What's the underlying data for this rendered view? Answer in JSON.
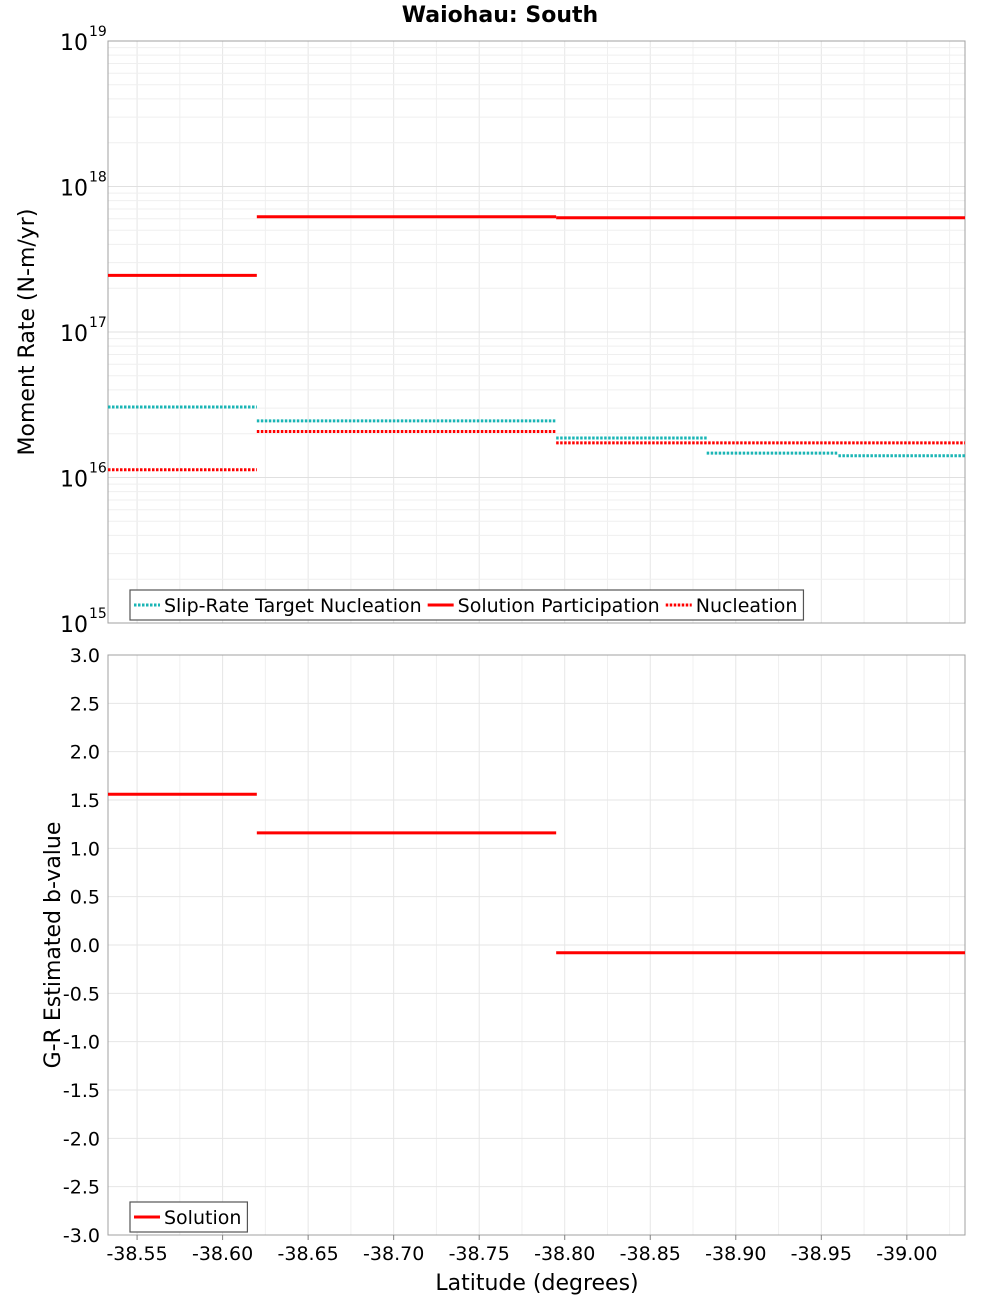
{
  "chart_data": {
    "title": "Waiohau: South",
    "type": "line",
    "x": {
      "label": "Latitude (degrees)",
      "range": [
        -38.533,
        -39.034
      ],
      "ticks": [
        "-38.55",
        "-38.60",
        "-38.65",
        "-38.70",
        "-38.75",
        "-38.80",
        "-38.85",
        "-38.90",
        "-38.95",
        "-39.00"
      ],
      "tick_values": [
        -38.55,
        -38.6,
        -38.65,
        -38.7,
        -38.75,
        -38.8,
        -38.85,
        -38.9,
        -38.95,
        -39.0
      ],
      "reversed": true,
      "grid": true
    },
    "panels": [
      {
        "ylabel": "Moment Rate (N-m/yr)",
        "yscale": "log",
        "ylim": [
          1000000000000000.0,
          1e+19
        ],
        "ytick_bases": [
          "10",
          "10",
          "10",
          "10",
          "10"
        ],
        "ytick_exponents": [
          "15",
          "16",
          "17",
          "18",
          "19"
        ],
        "legend": {
          "position": "bottom-left"
        },
        "series": [
          {
            "name": "Slip-Rate Target Nucleation",
            "color": "#1ab5b5",
            "style": "dotted",
            "steps": [
              {
                "x0": -38.533,
                "x1": -38.62,
                "y": 3.05e+16
              },
              {
                "x0": -38.62,
                "x1": -38.795,
                "y": 2.45e+16
              },
              {
                "x0": -38.795,
                "x1": -38.883,
                "y": 1.87e+16
              },
              {
                "x0": -38.883,
                "x1": -38.96,
                "y": 1.47e+16
              },
              {
                "x0": -38.96,
                "x1": -39.034,
                "y": 1.41e+16
              }
            ]
          },
          {
            "name": "Solution Participation",
            "color": "#ff0000",
            "style": "solid",
            "steps": [
              {
                "x0": -38.533,
                "x1": -38.62,
                "y": 2.45e+17
              },
              {
                "x0": -38.62,
                "x1": -38.795,
                "y": 6.2e+17
              },
              {
                "x0": -38.795,
                "x1": -39.034,
                "y": 6.1e+17
              }
            ]
          },
          {
            "name": "Nucleation",
            "color": "#ff0000",
            "style": "dotted",
            "steps": [
              {
                "x0": -38.533,
                "x1": -38.62,
                "y": 1.13e+16
              },
              {
                "x0": -38.62,
                "x1": -38.795,
                "y": 2.07e+16
              },
              {
                "x0": -38.795,
                "x1": -39.034,
                "y": 1.73e+16
              }
            ]
          }
        ]
      },
      {
        "ylabel": "G-R Estimated b-value",
        "yscale": "linear",
        "ylim": [
          -3.0,
          3.0
        ],
        "yticks": [
          "3.0",
          "2.5",
          "2.0",
          "1.5",
          "1.0",
          "0.5",
          "0.0",
          "-0.5",
          "-1.0",
          "-1.5",
          "-2.0",
          "-2.5",
          "-3.0"
        ],
        "ytick_values": [
          3.0,
          2.5,
          2.0,
          1.5,
          1.0,
          0.5,
          0.0,
          -0.5,
          -1.0,
          -1.5,
          -2.0,
          -2.5,
          -3.0
        ],
        "legend": {
          "position": "bottom-left"
        },
        "series": [
          {
            "name": "Solution",
            "color": "#ff0000",
            "style": "solid",
            "steps": [
              {
                "x0": -38.533,
                "x1": -38.62,
                "y": 1.56
              },
              {
                "x0": -38.62,
                "x1": -38.795,
                "y": 1.16
              },
              {
                "x0": -38.795,
                "x1": -39.034,
                "y": -0.08
              }
            ]
          }
        ]
      }
    ]
  }
}
